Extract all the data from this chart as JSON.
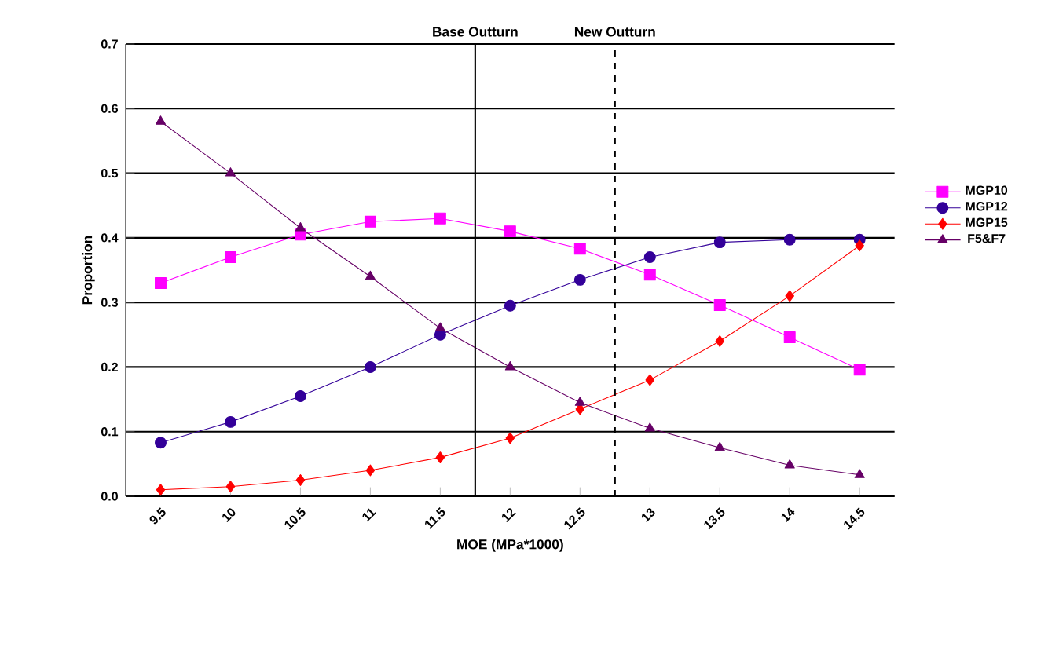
{
  "chart_data": {
    "type": "line",
    "xlabel": "MOE  (MPa*1000)",
    "ylabel": "Proportion",
    "x": [
      9.5,
      10,
      10.5,
      11,
      11.5,
      12,
      12.5,
      13,
      13.5,
      14,
      14.5
    ],
    "xlim": [
      9.25,
      14.75
    ],
    "xticks": [
      9.5,
      10,
      10.5,
      11,
      11.5,
      12,
      12.5,
      13,
      13.5,
      14,
      14.5
    ],
    "ylim": [
      0,
      0.7
    ],
    "yticks": [
      {
        "value": 0,
        "label": "0.0"
      },
      0.1,
      0.2,
      0.3,
      0.4,
      0.5,
      0.6,
      0.7
    ],
    "grid": "y",
    "legend": "right",
    "line_style": "solid",
    "series": [
      {
        "name": "MGP10",
        "color": "#ff00ff",
        "marker": "square",
        "values": [
          0.33,
          0.37,
          0.405,
          0.425,
          0.43,
          0.41,
          0.383,
          0.343,
          0.296,
          0.246,
          0.196
        ]
      },
      {
        "name": "MGP12",
        "color": "#330099",
        "marker": "circle",
        "values": [
          0.083,
          0.115,
          0.155,
          0.2,
          0.25,
          0.295,
          0.335,
          0.37,
          0.393,
          0.397,
          0.397
        ]
      },
      {
        "name": "MGP15",
        "color": "#ff0000",
        "marker": "diamond",
        "values": [
          0.01,
          0.015,
          0.025,
          0.04,
          0.06,
          0.09,
          0.135,
          0.18,
          0.24,
          0.31,
          0.388
        ]
      },
      {
        "name": "F5&F7",
        "color": "#660066",
        "marker": "triangle",
        "values": [
          0.58,
          0.5,
          0.415,
          0.34,
          0.26,
          0.2,
          0.145,
          0.105,
          0.075,
          0.048,
          0.033
        ]
      }
    ],
    "ref_lines": [
      {
        "axis": "x",
        "value": 11.75,
        "label": "Base Outturn",
        "color": "#000000",
        "line_style": "solid"
      },
      {
        "axis": "x",
        "value": 12.75,
        "label": "New Outturn",
        "color": "#000000",
        "line_style": "dashed"
      }
    ]
  }
}
